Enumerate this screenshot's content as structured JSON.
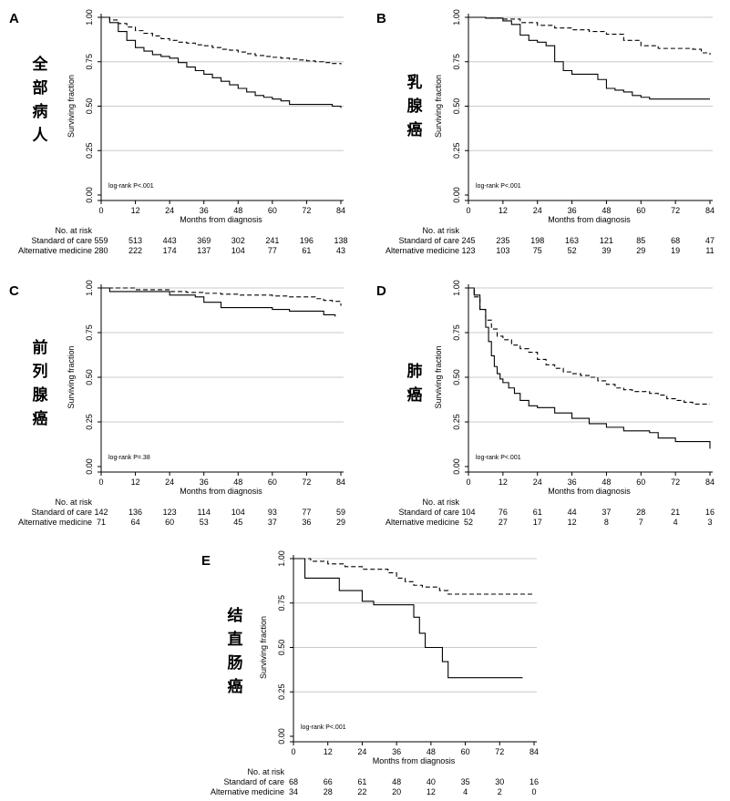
{
  "figure": {
    "risk_header": "No. at risk",
    "row_labels": [
      "Standard of care",
      "Alternative medicine"
    ],
    "xlabel": "Months from diagnosis",
    "ylabel": "Surviving fraction",
    "colors": {
      "line": "#000000",
      "grid": "#c8c8c8",
      "background": "#ffffff"
    }
  },
  "chart_data": [
    {
      "type": "line",
      "panel": "A",
      "label": "全部病人",
      "logrank": "log-rank P<.001",
      "xticks": [
        "0",
        "12",
        "24",
        "36",
        "48",
        "60",
        "72",
        "84"
      ],
      "yticks": [
        "0.00",
        "0.25",
        "0.50",
        "0.75",
        "1.00"
      ],
      "xlim": [
        0,
        84
      ],
      "ylim": [
        0,
        1
      ],
      "series": [
        {
          "name": "Standard of care",
          "style": "dashed",
          "x": [
            0,
            3,
            6,
            9,
            12,
            15,
            18,
            21,
            24,
            27,
            30,
            33,
            36,
            39,
            42,
            45,
            48,
            51,
            54,
            57,
            60,
            63,
            66,
            69,
            72,
            75,
            78,
            81,
            84
          ],
          "y": [
            1,
            0.985,
            0.965,
            0.945,
            0.925,
            0.91,
            0.895,
            0.88,
            0.87,
            0.86,
            0.855,
            0.845,
            0.84,
            0.83,
            0.82,
            0.815,
            0.805,
            0.795,
            0.785,
            0.78,
            0.775,
            0.77,
            0.765,
            0.76,
            0.755,
            0.75,
            0.745,
            0.74,
            0.735
          ]
        },
        {
          "name": "Alternative medicine",
          "style": "solid",
          "x": [
            0,
            3,
            6,
            9,
            12,
            15,
            18,
            21,
            24,
            27,
            30,
            33,
            36,
            39,
            42,
            45,
            48,
            51,
            54,
            57,
            60,
            63,
            66,
            69,
            72,
            75,
            78,
            81,
            84
          ],
          "y": [
            1,
            0.97,
            0.92,
            0.87,
            0.83,
            0.81,
            0.79,
            0.78,
            0.77,
            0.745,
            0.72,
            0.7,
            0.68,
            0.66,
            0.64,
            0.62,
            0.6,
            0.58,
            0.56,
            0.55,
            0.54,
            0.53,
            0.51,
            0.51,
            0.51,
            0.51,
            0.51,
            0.5,
            0.49
          ]
        }
      ],
      "risk": [
        [
          "559",
          "513",
          "443",
          "369",
          "302",
          "241",
          "196",
          "138"
        ],
        [
          "280",
          "222",
          "174",
          "137",
          "104",
          "77",
          "61",
          "43"
        ]
      ]
    },
    {
      "type": "line",
      "panel": "B",
      "label": "乳腺癌",
      "logrank": "log-rank P<.001",
      "xticks": [
        "0",
        "12",
        "24",
        "36",
        "48",
        "60",
        "72",
        "84"
      ],
      "yticks": [
        "0.00",
        "0.25",
        "0.50",
        "0.75",
        "1.00"
      ],
      "xlim": [
        0,
        84
      ],
      "ylim": [
        0,
        1
      ],
      "series": [
        {
          "name": "Standard of care",
          "style": "dashed",
          "x": [
            0,
            6,
            12,
            18,
            24,
            30,
            36,
            42,
            48,
            54,
            60,
            66,
            72,
            78,
            81,
            84
          ],
          "y": [
            1,
            0.995,
            0.99,
            0.97,
            0.955,
            0.94,
            0.93,
            0.92,
            0.905,
            0.87,
            0.84,
            0.825,
            0.825,
            0.82,
            0.8,
            0.79
          ]
        },
        {
          "name": "Alternative medicine",
          "style": "solid",
          "x": [
            0,
            6,
            12,
            15,
            18,
            21,
            24,
            27,
            30,
            33,
            36,
            42,
            45,
            48,
            51,
            54,
            57,
            60,
            63,
            66,
            72,
            78,
            84
          ],
          "y": [
            1,
            0.995,
            0.98,
            0.96,
            0.9,
            0.87,
            0.86,
            0.84,
            0.75,
            0.7,
            0.68,
            0.68,
            0.65,
            0.6,
            0.59,
            0.58,
            0.56,
            0.55,
            0.54,
            0.54,
            0.54,
            0.54,
            0.54
          ]
        }
      ],
      "risk": [
        [
          "245",
          "235",
          "198",
          "163",
          "121",
          "85",
          "68",
          "47"
        ],
        [
          "123",
          "103",
          "75",
          "52",
          "39",
          "29",
          "19",
          "11"
        ]
      ]
    },
    {
      "type": "line",
      "panel": "C",
      "label": "前列腺癌",
      "logrank": "log-rank P=.38",
      "xticks": [
        "0",
        "12",
        "24",
        "36",
        "48",
        "60",
        "72",
        "84"
      ],
      "yticks": [
        "0.00",
        "0.25",
        "0.50",
        "0.75",
        "1.00"
      ],
      "xlim": [
        0,
        84
      ],
      "ylim": [
        0,
        1
      ],
      "series": [
        {
          "name": "Standard of care",
          "style": "dashed",
          "x": [
            0,
            6,
            12,
            18,
            24,
            30,
            36,
            42,
            48,
            54,
            60,
            66,
            72,
            75,
            78,
            81,
            84
          ],
          "y": [
            1,
            1,
            0.99,
            0.99,
            0.98,
            0.975,
            0.97,
            0.965,
            0.96,
            0.96,
            0.955,
            0.95,
            0.95,
            0.94,
            0.93,
            0.925,
            0.9
          ]
        },
        {
          "name": "Alternative medicine",
          "style": "solid",
          "x": [
            0,
            3,
            12,
            18,
            24,
            30,
            33,
            36,
            42,
            48,
            54,
            60,
            66,
            72,
            78,
            82
          ],
          "y": [
            1,
            0.98,
            0.98,
            0.98,
            0.96,
            0.96,
            0.95,
            0.92,
            0.89,
            0.89,
            0.89,
            0.88,
            0.87,
            0.87,
            0.85,
            0.84
          ]
        }
      ],
      "risk": [
        [
          "142",
          "136",
          "123",
          "114",
          "104",
          "93",
          "77",
          "59"
        ],
        [
          "71",
          "64",
          "60",
          "53",
          "45",
          "37",
          "36",
          "29"
        ]
      ]
    },
    {
      "type": "line",
      "panel": "D",
      "label": "肺癌",
      "logrank": "log-rank P<.001",
      "xticks": [
        "0",
        "12",
        "24",
        "36",
        "48",
        "60",
        "72",
        "84"
      ],
      "yticks": [
        "0.00",
        "0.25",
        "0.50",
        "0.75",
        "1.00"
      ],
      "xlim": [
        0,
        84
      ],
      "ylim": [
        0,
        1
      ],
      "series": [
        {
          "name": "Standard of care",
          "style": "dashed",
          "x": [
            0,
            2,
            4,
            6,
            8,
            10,
            12,
            15,
            18,
            21,
            24,
            27,
            30,
            33,
            36,
            39,
            42,
            45,
            48,
            51,
            54,
            57,
            60,
            63,
            66,
            69,
            72,
            75,
            78,
            81,
            84
          ],
          "y": [
            1,
            0.95,
            0.88,
            0.82,
            0.77,
            0.73,
            0.71,
            0.68,
            0.66,
            0.64,
            0.6,
            0.57,
            0.55,
            0.53,
            0.52,
            0.51,
            0.5,
            0.48,
            0.46,
            0.44,
            0.43,
            0.42,
            0.42,
            0.41,
            0.4,
            0.38,
            0.37,
            0.36,
            0.35,
            0.35,
            0.35
          ]
        },
        {
          "name": "Alternative medicine",
          "style": "solid",
          "x": [
            0,
            2,
            4,
            6,
            7,
            8,
            9,
            10,
            11,
            12,
            14,
            16,
            18,
            21,
            24,
            27,
            30,
            36,
            42,
            48,
            54,
            60,
            63,
            66,
            72,
            78,
            84
          ],
          "y": [
            1,
            0.96,
            0.88,
            0.78,
            0.7,
            0.62,
            0.56,
            0.52,
            0.49,
            0.47,
            0.44,
            0.41,
            0.37,
            0.34,
            0.33,
            0.33,
            0.3,
            0.27,
            0.24,
            0.22,
            0.2,
            0.2,
            0.19,
            0.16,
            0.14,
            0.14,
            0.1
          ]
        }
      ],
      "risk": [
        [
          "104",
          "76",
          "61",
          "44",
          "37",
          "28",
          "21",
          "16"
        ],
        [
          "52",
          "27",
          "17",
          "12",
          "8",
          "7",
          "4",
          "3"
        ]
      ]
    },
    {
      "type": "line",
      "panel": "E",
      "label": "结直肠癌",
      "logrank": "log-rank P<.001",
      "xticks": [
        "0",
        "12",
        "24",
        "36",
        "48",
        "60",
        "72",
        "84"
      ],
      "yticks": [
        "0.00",
        "0.25",
        "0.50",
        "0.75",
        "1.00"
      ],
      "xlim": [
        0,
        84
      ],
      "ylim": [
        0,
        1
      ],
      "series": [
        {
          "name": "Standard of care",
          "style": "dashed",
          "x": [
            0,
            3,
            6,
            12,
            18,
            24,
            30,
            33,
            36,
            39,
            42,
            45,
            48,
            51,
            54,
            57,
            60,
            66,
            72,
            78,
            84
          ],
          "y": [
            1,
            1,
            0.985,
            0.97,
            0.955,
            0.94,
            0.94,
            0.92,
            0.89,
            0.87,
            0.85,
            0.84,
            0.84,
            0.82,
            0.8,
            0.8,
            0.8,
            0.8,
            0.8,
            0.8,
            0.8
          ]
        },
        {
          "name": "Alternative medicine",
          "style": "solid",
          "x": [
            0,
            3,
            4,
            10,
            16,
            20,
            24,
            28,
            32,
            36,
            40,
            42,
            44,
            46,
            48,
            50,
            52,
            54,
            56,
            60,
            66,
            72,
            80
          ],
          "y": [
            1,
            1,
            0.89,
            0.89,
            0.82,
            0.82,
            0.76,
            0.74,
            0.74,
            0.74,
            0.74,
            0.67,
            0.58,
            0.5,
            0.5,
            0.5,
            0.42,
            0.33,
            0.33,
            0.33,
            0.33,
            0.33,
            0.33
          ]
        }
      ],
      "risk": [
        [
          "68",
          "66",
          "61",
          "48",
          "40",
          "35",
          "30",
          "16"
        ],
        [
          "34",
          "28",
          "22",
          "20",
          "12",
          "4",
          "2",
          "0"
        ]
      ]
    }
  ]
}
